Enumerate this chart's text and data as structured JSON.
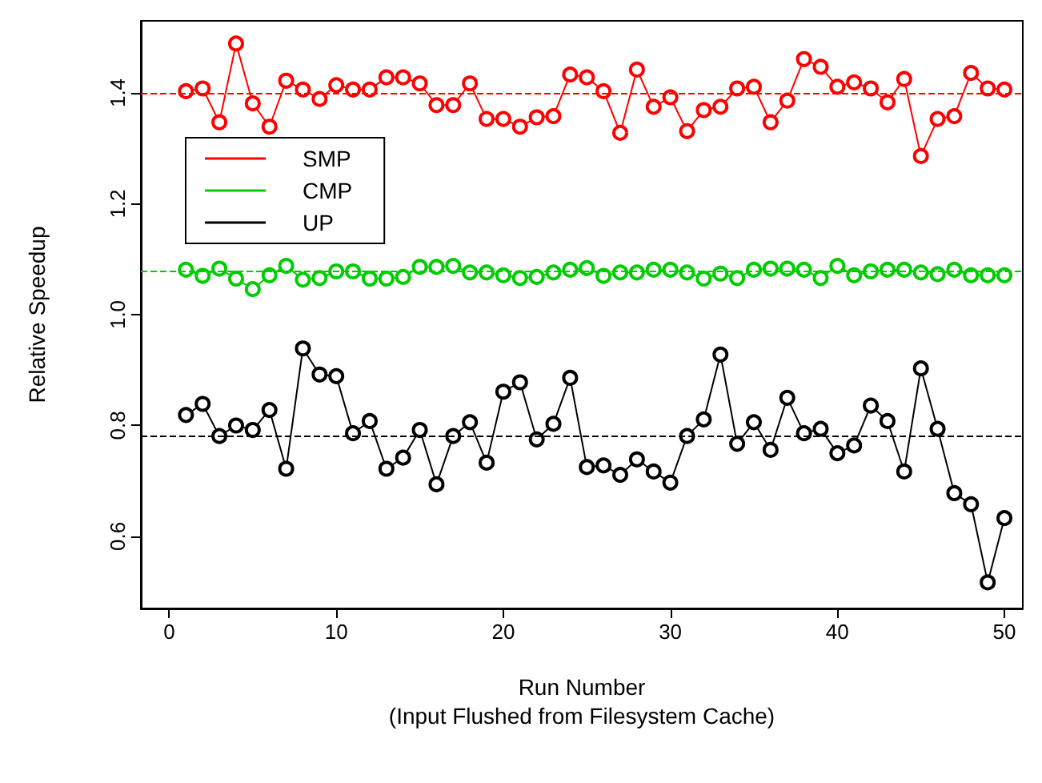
{
  "chart_data": {
    "type": "line",
    "xlabel": "Run Number\n(Input Flushed from Filesystem Cache)",
    "ylabel": "Relative Speedup",
    "x": [
      1,
      2,
      3,
      4,
      5,
      6,
      7,
      8,
      9,
      10,
      11,
      12,
      13,
      14,
      15,
      16,
      17,
      18,
      19,
      20,
      21,
      22,
      23,
      24,
      25,
      26,
      27,
      28,
      29,
      30,
      31,
      32,
      33,
      34,
      35,
      36,
      37,
      38,
      39,
      40,
      41,
      42,
      43,
      44,
      45,
      46,
      47,
      48,
      49,
      50
    ],
    "series": [
      {
        "name": "SMP",
        "color": "#ff0000",
        "values": [
          1.403,
          1.408,
          1.347,
          1.489,
          1.381,
          1.339,
          1.422,
          1.406,
          1.389,
          1.414,
          1.406,
          1.406,
          1.428,
          1.428,
          1.417,
          1.378,
          1.378,
          1.417,
          1.353,
          1.353,
          1.339,
          1.356,
          1.358,
          1.433,
          1.428,
          1.403,
          1.328,
          1.442,
          1.375,
          1.392,
          1.331,
          1.369,
          1.375,
          1.408,
          1.411,
          1.347,
          1.386,
          1.461,
          1.447,
          1.411,
          1.419,
          1.408,
          1.383,
          1.425,
          1.286,
          1.353,
          1.358,
          1.436,
          1.408,
          1.406
        ]
      },
      {
        "name": "CMP",
        "color": "#00cd00",
        "values": [
          1.081,
          1.07,
          1.083,
          1.065,
          1.046,
          1.071,
          1.088,
          1.063,
          1.066,
          1.078,
          1.078,
          1.065,
          1.065,
          1.068,
          1.086,
          1.086,
          1.088,
          1.076,
          1.076,
          1.071,
          1.066,
          1.068,
          1.076,
          1.081,
          1.084,
          1.07,
          1.076,
          1.076,
          1.081,
          1.081,
          1.076,
          1.065,
          1.074,
          1.066,
          1.081,
          1.083,
          1.083,
          1.081,
          1.066,
          1.088,
          1.071,
          1.078,
          1.081,
          1.081,
          1.076,
          1.073,
          1.081,
          1.071,
          1.071,
          1.071
        ]
      },
      {
        "name": "UP",
        "color": "#000000",
        "values": [
          0.819,
          0.839,
          0.781,
          0.8,
          0.792,
          0.828,
          0.722,
          0.939,
          0.892,
          0.889,
          0.786,
          0.808,
          0.722,
          0.742,
          0.792,
          0.694,
          0.781,
          0.806,
          0.733,
          0.861,
          0.878,
          0.775,
          0.803,
          0.886,
          0.725,
          0.728,
          0.711,
          0.739,
          0.717,
          0.697,
          0.781,
          0.811,
          0.928,
          0.767,
          0.806,
          0.756,
          0.85,
          0.786,
          0.794,
          0.75,
          0.764,
          0.836,
          0.808,
          0.717,
          0.903,
          0.794,
          0.678,
          0.658,
          0.517,
          0.633
        ]
      }
    ],
    "ref_lines": [
      {
        "axis": "y",
        "value": 1.4,
        "color": "#ff0000",
        "line_style": "dashed"
      },
      {
        "axis": "y",
        "value": 1.076,
        "color": "#00cd00",
        "line_style": "dashed"
      },
      {
        "axis": "y",
        "value": 0.777,
        "color": "#000000",
        "line_style": "dashed"
      }
    ],
    "xlim": [
      -1.7,
      51.1
    ],
    "xticks": [
      0,
      10,
      20,
      30,
      40,
      50
    ],
    "ylim": [
      0.47,
      1.53
    ],
    "yticks": [
      {
        "value": 0.6,
        "label": "0.6"
      },
      {
        "value": 0.8,
        "label": "0.8"
      },
      {
        "value": 1,
        "label": "1.0"
      },
      {
        "value": 1.2,
        "label": "1.2"
      },
      {
        "value": 1.4,
        "label": "1.4"
      }
    ],
    "marker": "circle",
    "line_style": "solid",
    "legend": "top left",
    "grid": false
  }
}
